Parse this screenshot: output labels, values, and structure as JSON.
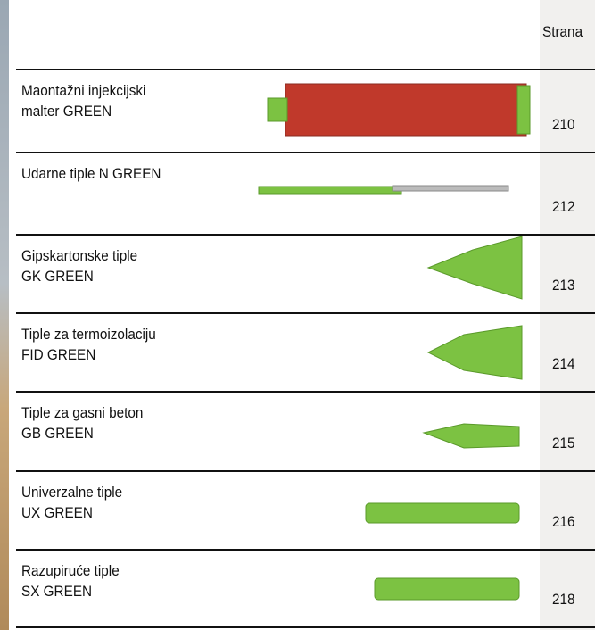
{
  "header": {
    "title": "Strana"
  },
  "rows": [
    {
      "name": [
        "Maontažni injekcijski",
        "malter GREEN"
      ],
      "page": 210
    },
    {
      "name": [
        "Udarne tiple N GREEN"
      ],
      "page": 212
    },
    {
      "name": [
        "Gipskartonske tiple",
        "GK GREEN"
      ],
      "page": 213
    },
    {
      "name": [
        "Tiple za termoizolaciju",
        "FID GREEN"
      ],
      "page": 214
    },
    {
      "name": [
        "Tiple za gasni beton",
        "GB GREEN"
      ],
      "page": 215
    },
    {
      "name": [
        "Univerzalne tiple",
        "UX GREEN"
      ],
      "page": 216
    },
    {
      "name": [
        "Razupiruće tiple",
        "SX GREEN"
      ],
      "page": 218
    }
  ]
}
